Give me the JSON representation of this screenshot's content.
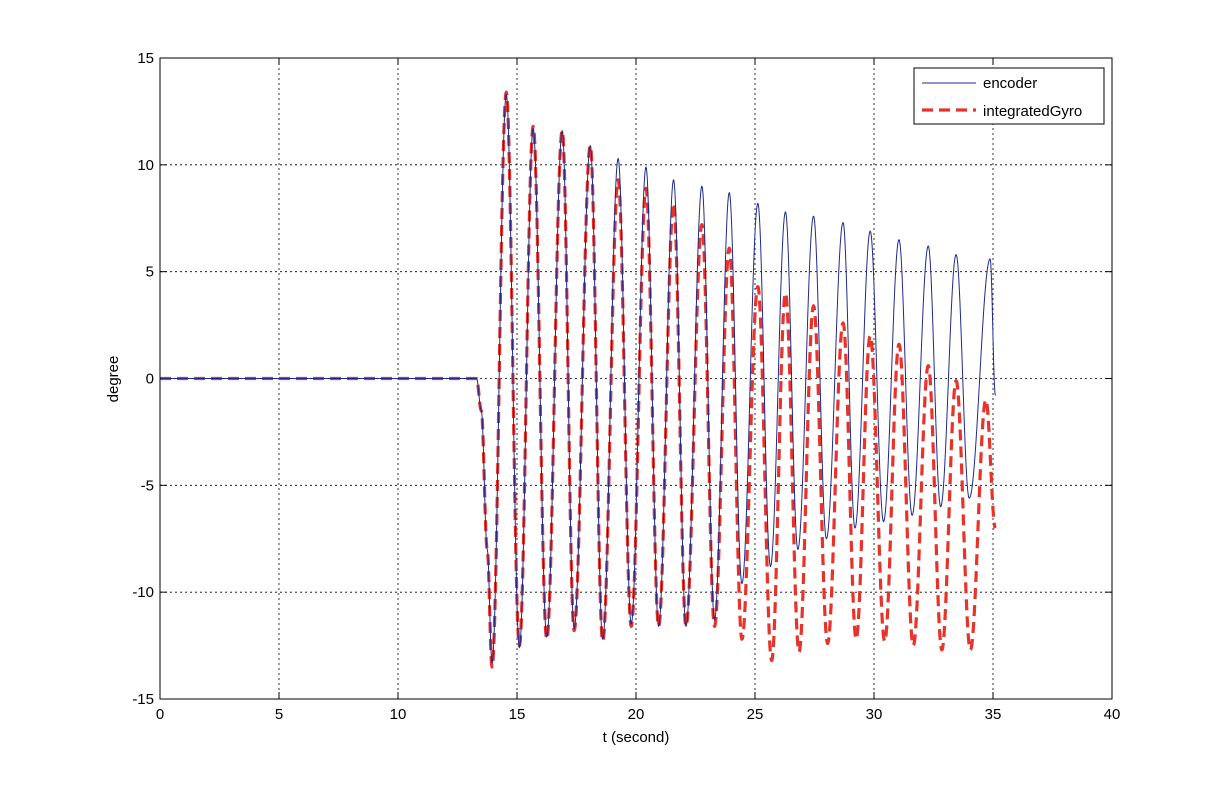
{
  "chart_data": {
    "type": "line",
    "title": "",
    "xlabel": "t (second)",
    "ylabel": "degree",
    "xlim": [
      0,
      40
    ],
    "ylim": [
      -15,
      15
    ],
    "xticks": [
      0,
      5,
      10,
      15,
      20,
      25,
      30,
      35,
      40
    ],
    "yticks": [
      15,
      10,
      5,
      0,
      -5,
      -10,
      -15
    ],
    "grid": true,
    "legend_position": "top-right",
    "series": [
      {
        "name": "encoder",
        "color": "#1f2a8c",
        "style": "solid",
        "x": [
          0,
          13.3,
          13.5,
          13.75,
          13.95,
          14.55,
          15.1,
          15.68,
          16.25,
          16.9,
          17.4,
          18.08,
          18.6,
          19.25,
          19.8,
          20.42,
          20.95,
          21.58,
          22.1,
          22.77,
          23.3,
          23.92,
          24.45,
          25.12,
          25.65,
          26.28,
          26.8,
          27.46,
          28.0,
          28.7,
          29.2,
          29.84,
          30.4,
          31.05,
          31.6,
          32.28,
          32.8,
          33.45,
          34.0,
          34.88,
          35.1
        ],
        "y": [
          0,
          0,
          -1.5,
          -8,
          -13.3,
          13.3,
          -12.6,
          11.7,
          -12.1,
          11.6,
          -11.7,
          10.9,
          -12.2,
          10.3,
          -11.5,
          9.9,
          -11.6,
          9.3,
          -11.6,
          9.0,
          -11.3,
          8.7,
          -9.6,
          8.2,
          -8.8,
          7.8,
          -8.0,
          7.6,
          -7.5,
          7.3,
          -7.0,
          6.9,
          -6.7,
          6.5,
          -6.4,
          6.2,
          -6.0,
          5.8,
          -5.6,
          5.6,
          -0.8
        ]
      },
      {
        "name": "integratedGyro",
        "color": "#e8332a",
        "style": "dashed",
        "x": [
          0,
          13.3,
          13.5,
          13.75,
          13.95,
          14.55,
          15.1,
          15.68,
          16.25,
          16.9,
          17.4,
          18.08,
          18.6,
          19.25,
          19.8,
          20.42,
          20.95,
          21.58,
          22.1,
          22.77,
          23.3,
          23.92,
          24.45,
          25.12,
          25.7,
          26.28,
          26.85,
          27.46,
          28.05,
          28.7,
          29.25,
          29.84,
          30.45,
          31.05,
          31.65,
          32.28,
          32.85,
          33.45,
          34.05,
          34.7,
          35.1
        ],
        "y": [
          0,
          0,
          -1.5,
          -8,
          -13.5,
          13.4,
          -12.5,
          11.8,
          -12.2,
          11.6,
          -11.8,
          10.9,
          -12.3,
          9.3,
          -11.6,
          8.9,
          -11.6,
          8.2,
          -11.6,
          7.2,
          -11.6,
          6.1,
          -12.2,
          4.3,
          -13.2,
          4.0,
          -12.8,
          3.4,
          -12.4,
          2.6,
          -12.2,
          2.0,
          -12.3,
          1.6,
          -12.5,
          0.6,
          -12.7,
          -0.1,
          -12.7,
          -1.0,
          -7.0
        ]
      }
    ]
  }
}
